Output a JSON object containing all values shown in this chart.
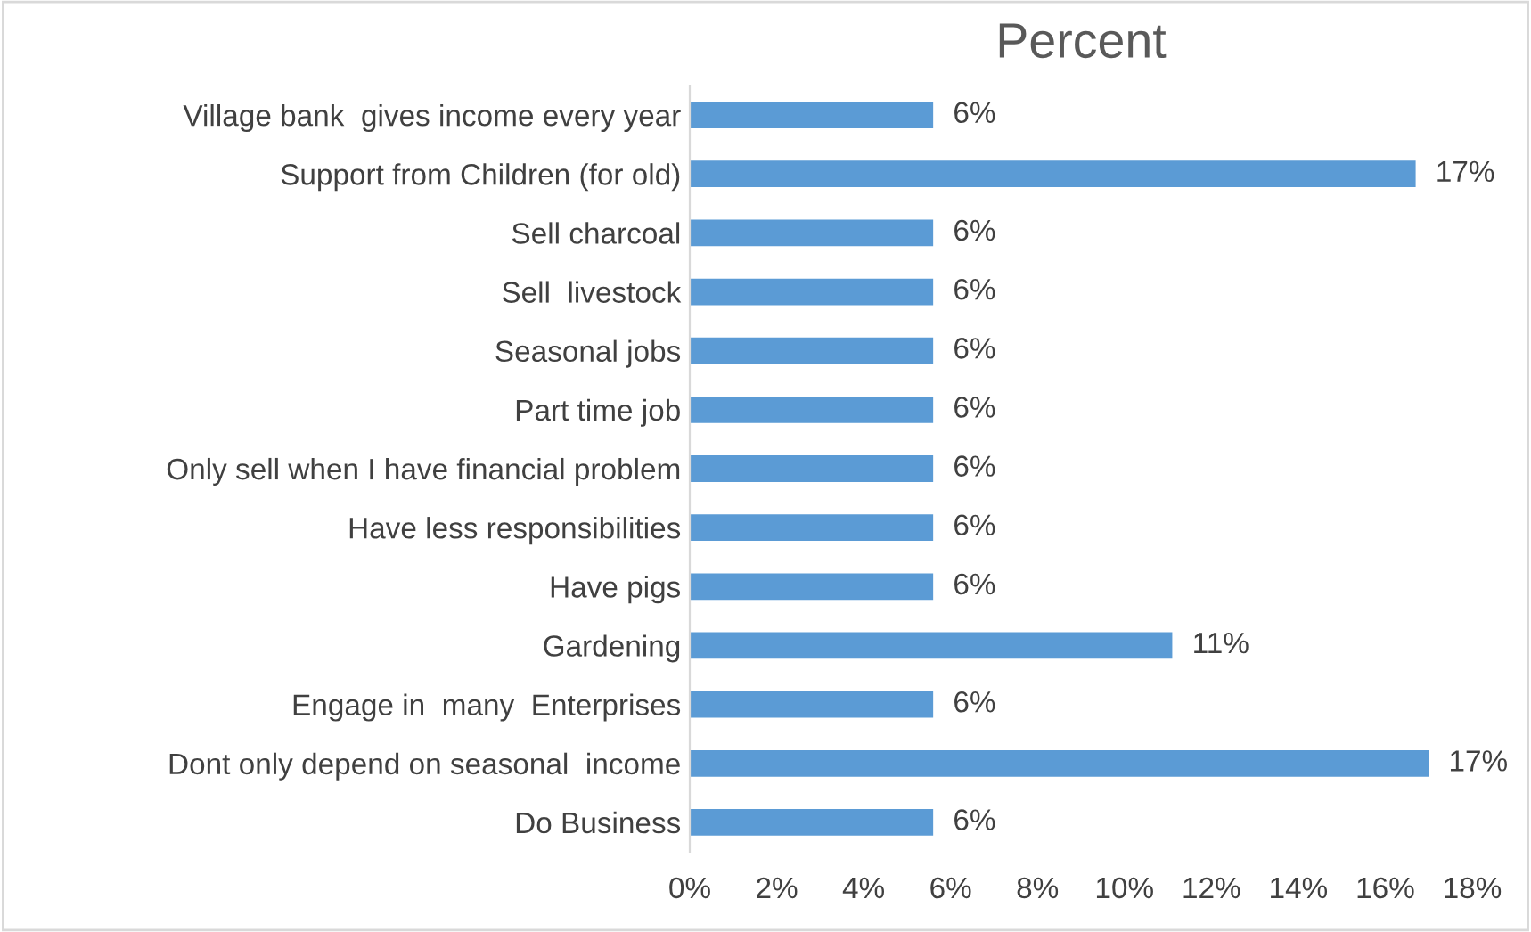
{
  "chart_data": {
    "type": "bar",
    "orientation": "horizontal",
    "title": "Percent",
    "categories": [
      "Village bank  gives income every year",
      "Support from Children (for old)",
      "Sell charcoal",
      "Sell  livestock",
      "Seasonal jobs",
      "Part time job",
      "Only sell when I have financial problem",
      "Have less responsibilities",
      "Have pigs",
      "Gardening",
      "Engage in  many  Enterprises",
      "Dont only depend on seasonal  income",
      "Do Business"
    ],
    "values": [
      5.6,
      16.7,
      5.6,
      5.6,
      5.6,
      5.6,
      5.6,
      5.6,
      5.6,
      11.1,
      5.6,
      17.0,
      5.6
    ],
    "value_labels": [
      "6%",
      "17%",
      "6%",
      "6%",
      "6%",
      "6%",
      "6%",
      "6%",
      "6%",
      "11%",
      "6%",
      "17%",
      "6%"
    ],
    "color": "#5b9bd5",
    "xlim": [
      0,
      18
    ],
    "xticks": [
      {
        "value": 0,
        "label": "0%"
      },
      {
        "value": 2,
        "label": "2%"
      },
      {
        "value": 4,
        "label": "4%"
      },
      {
        "value": 6,
        "label": "6%"
      },
      {
        "value": 8,
        "label": "8%"
      },
      {
        "value": 10,
        "label": "10%"
      },
      {
        "value": 12,
        "label": "12%"
      },
      {
        "value": 14,
        "label": "14%"
      },
      {
        "value": 16,
        "label": "16%"
      },
      {
        "value": 18,
        "label": "18%"
      }
    ],
    "grid": false,
    "legend": false
  }
}
